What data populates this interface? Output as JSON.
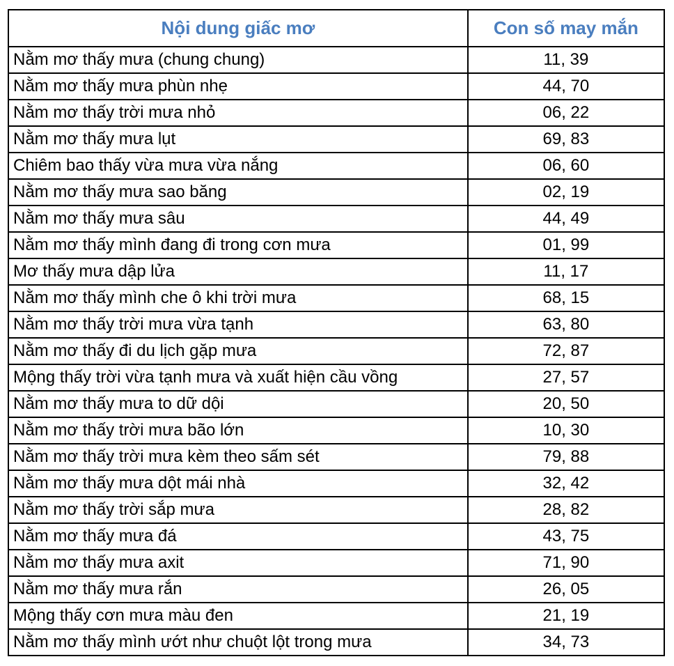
{
  "header": {
    "content": "Nội dung giấc mơ",
    "numbers": "Con số may mắn",
    "color": "#4a7ebf"
  },
  "rows": [
    {
      "content": "Nằm mơ thấy mưa (chung chung)",
      "numbers": "11, 39"
    },
    {
      "content": "Nằm mơ thấy mưa phùn nhẹ",
      "numbers": "44, 70"
    },
    {
      "content": "Nằm mơ thấy trời mưa nhỏ",
      "numbers": "06, 22"
    },
    {
      "content": "Nằm mơ thấy mưa lụt",
      "numbers": "69, 83"
    },
    {
      "content": "Chiêm bao thấy vừa mưa vừa nắng",
      "numbers": "06, 60"
    },
    {
      "content": "Nằm mơ thấy mưa sao băng",
      "numbers": "02, 19"
    },
    {
      "content": "Nằm mơ thấy mưa sâu",
      "numbers": "44, 49"
    },
    {
      "content": "Nằm mơ thấy mình đang đi trong cơn mưa",
      "numbers": "01, 99"
    },
    {
      "content": "Mơ thấy mưa dập lửa",
      "numbers": "11, 17"
    },
    {
      "content": "Nằm mơ thấy mình che ô khi trời mưa",
      "numbers": "68, 15"
    },
    {
      "content": "Nằm mơ thấy trời mưa vừa tạnh",
      "numbers": "63, 80"
    },
    {
      "content": "Nằm mơ thấy đi du lịch gặp mưa",
      "numbers": "72, 87"
    },
    {
      "content": "Mộng thấy trời vừa tạnh mưa và xuất hiện cầu vồng",
      "numbers": "27, 57"
    },
    {
      "content": "Nằm mơ thấy mưa to dữ dội",
      "numbers": "20, 50"
    },
    {
      "content": "Nằm mơ thấy trời mưa bão lớn",
      "numbers": "10, 30"
    },
    {
      "content": "Nằm mơ thấy trời mưa kèm theo sấm sét",
      "numbers": "79, 88"
    },
    {
      "content": "Nằm mơ thấy mưa dột mái nhà",
      "numbers": "32, 42"
    },
    {
      "content": "Nằm mơ thấy trời sắp mưa",
      "numbers": "28, 82"
    },
    {
      "content": "Nằm mơ thấy mưa đá",
      "numbers": "43, 75"
    },
    {
      "content": "Nằm mơ thấy mưa axit",
      "numbers": "71, 90"
    },
    {
      "content": "Nằm mơ thấy mưa rắn",
      "numbers": "26, 05"
    },
    {
      "content": "Mộng thấy cơn mưa màu đen",
      "numbers": "21, 19"
    },
    {
      "content": "Nằm mơ thấy mình ướt như chuột lột trong mưa",
      "numbers": "34, 73"
    }
  ]
}
